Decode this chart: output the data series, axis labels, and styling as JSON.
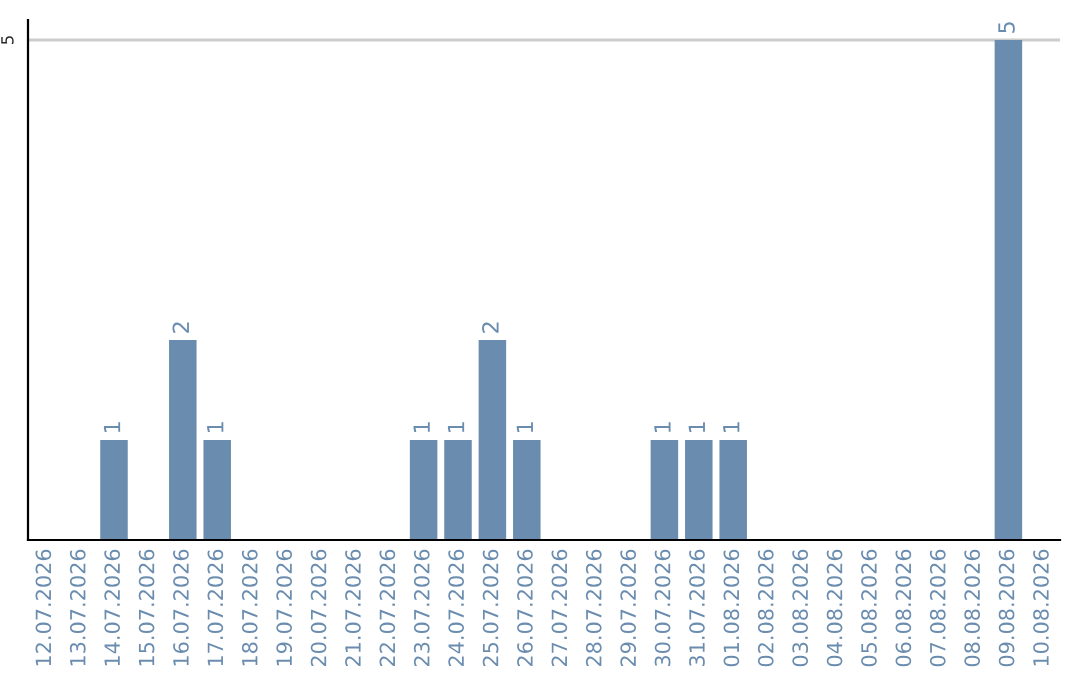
{
  "chart_data": {
    "type": "bar",
    "categories": [
      "12.07.2026",
      "13.07.2026",
      "14.07.2026",
      "15.07.2026",
      "16.07.2026",
      "17.07.2026",
      "18.07.2026",
      "19.07.2026",
      "20.07.2026",
      "21.07.2026",
      "22.07.2026",
      "23.07.2026",
      "24.07.2026",
      "25.07.2026",
      "26.07.2026",
      "27.07.2026",
      "28.07.2026",
      "29.07.2026",
      "30.07.2026",
      "31.07.2026",
      "01.08.2026",
      "02.08.2026",
      "03.08.2026",
      "04.08.2026",
      "05.08.2026",
      "06.08.2026",
      "07.08.2026",
      "08.08.2026",
      "09.08.2026",
      "10.08.2026"
    ],
    "values": [
      0,
      0,
      1,
      0,
      2,
      1,
      0,
      0,
      0,
      0,
      0,
      1,
      1,
      2,
      1,
      0,
      0,
      0,
      1,
      1,
      1,
      0,
      0,
      0,
      0,
      0,
      0,
      0,
      5,
      0
    ],
    "value_labels": [
      null,
      null,
      "1",
      null,
      "2",
      "1",
      null,
      null,
      null,
      null,
      null,
      "1",
      "1",
      "2",
      "1",
      null,
      null,
      null,
      "1",
      "1",
      "1",
      null,
      null,
      null,
      null,
      null,
      null,
      null,
      "5",
      null
    ],
    "color": "#6a8caf",
    "ylim": [
      0,
      5.2
    ],
    "yticks": [
      5
    ],
    "grid": "y"
  }
}
